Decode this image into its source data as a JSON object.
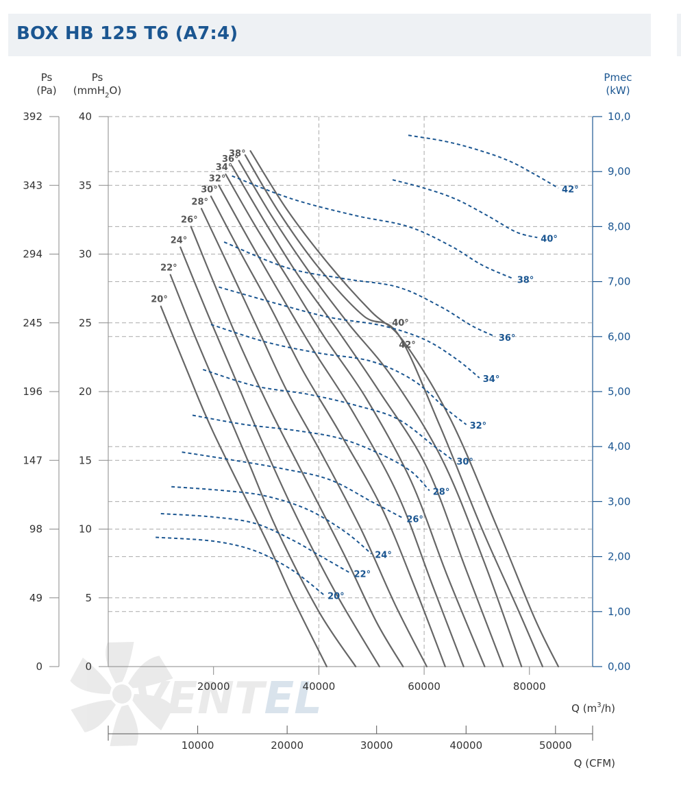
{
  "title": "BOX HB 125 T6 (A7:4)",
  "watermark": {
    "text_main": "VENT",
    "text_accent": "EL"
  },
  "colors": {
    "title": "#1b5691",
    "pressure_curves": "#666666",
    "power_curves": "#1b5691",
    "grid": "#a9a9a9",
    "title_bg": "#eef1f4"
  },
  "chart_data": {
    "type": "line",
    "title": "BOX HB 125 T6 (A7:4)",
    "x_axis": {
      "label_main": "Q (m",
      "label_sup": "3",
      "label_end": "/h)",
      "range": [
        0,
        92000
      ],
      "ticks": [
        20000,
        40000,
        60000,
        80000
      ],
      "tick_labels": [
        "20000",
        "40000",
        "60000",
        "80000"
      ]
    },
    "x2_axis": {
      "label": "Q (CFM)",
      "ticks": [
        10000,
        20000,
        30000,
        40000,
        50000
      ],
      "tick_labels": [
        "10000",
        "20000",
        "30000",
        "40000",
        "50000"
      ]
    },
    "y_left_pa": {
      "label": [
        "Ps",
        "(Pa)"
      ],
      "ticks": [
        0,
        49,
        98,
        147,
        196,
        245,
        294,
        343,
        392
      ],
      "tick_labels": [
        "0",
        "49",
        "98",
        "147",
        "196",
        "245",
        "294",
        "343",
        "392"
      ]
    },
    "y_left_mm": {
      "label_top": "Ps",
      "label_main": "(mmH",
      "label_sub": "2",
      "label_end": "O)",
      "range": [
        0,
        40
      ],
      "ticks": [
        0,
        5,
        10,
        15,
        20,
        25,
        30,
        35,
        40
      ],
      "tick_labels": [
        "0",
        "5",
        "10",
        "15",
        "20",
        "25",
        "30",
        "35",
        "40"
      ]
    },
    "y_right_kw": {
      "label": [
        "Pmec",
        "(kW)"
      ],
      "range": [
        0,
        10
      ],
      "ticks": [
        0,
        1,
        2,
        3,
        4,
        5,
        6,
        7,
        8,
        9,
        10
      ],
      "tick_labels": [
        "0,00",
        "1,00",
        "2,00",
        "3,00",
        "4,00",
        "5,00",
        "6,00",
        "7,00",
        "8,00",
        "9,00",
        "10,0"
      ]
    },
    "grid": {
      "horizontal_mm": [
        5,
        10,
        15,
        20,
        25,
        30,
        35,
        40
      ],
      "horizontal_kw": [
        1,
        2,
        3,
        4,
        6,
        7,
        8,
        9
      ],
      "vertical_q": [
        40000,
        60000
      ]
    },
    "series_pressure": [
      {
        "name": "20°",
        "points": [
          [
            10000,
            26.2
          ],
          [
            15000,
            21.5
          ],
          [
            20000,
            17.0
          ],
          [
            30000,
            9.2
          ],
          [
            35000,
            5.0
          ],
          [
            41500,
            0
          ]
        ]
      },
      {
        "name": "22°",
        "points": [
          [
            11800,
            28.5
          ],
          [
            16500,
            24.0
          ],
          [
            21500,
            19.5
          ],
          [
            26500,
            15.0
          ],
          [
            32000,
            10.0
          ],
          [
            40000,
            4.0
          ],
          [
            47000,
            0
          ]
        ]
      },
      {
        "name": "24°",
        "points": [
          [
            13700,
            30.5
          ],
          [
            18500,
            26.0
          ],
          [
            23500,
            21.5
          ],
          [
            28500,
            17.0
          ],
          [
            35000,
            11.5
          ],
          [
            43000,
            5.5
          ],
          [
            51500,
            0
          ]
        ]
      },
      {
        "name": "26°",
        "points": [
          [
            15700,
            32.0
          ],
          [
            20500,
            27.5
          ],
          [
            25500,
            23.0
          ],
          [
            31000,
            18.5
          ],
          [
            37000,
            14.0
          ],
          [
            45000,
            8.0
          ],
          [
            51000,
            3.2
          ],
          [
            56000,
            0
          ]
        ]
      },
      {
        "name": "28°",
        "points": [
          [
            17700,
            33.3
          ],
          [
            23000,
            29.0
          ],
          [
            28500,
            24.5
          ],
          [
            34000,
            20.0
          ],
          [
            40500,
            15.5
          ],
          [
            48000,
            10.0
          ],
          [
            54500,
            4.5
          ],
          [
            60500,
            0
          ]
        ]
      },
      {
        "name": "30°",
        "points": [
          [
            19500,
            34.2
          ],
          [
            25000,
            30.2
          ],
          [
            31000,
            26.0
          ],
          [
            37000,
            21.5
          ],
          [
            44000,
            17.0
          ],
          [
            52000,
            11.5
          ],
          [
            58500,
            5.5
          ],
          [
            64000,
            0
          ]
        ]
      },
      {
        "name": "32°",
        "points": [
          [
            21000,
            35.0
          ],
          [
            26500,
            31.2
          ],
          [
            32500,
            27.2
          ],
          [
            39000,
            23.0
          ],
          [
            46500,
            18.5
          ],
          [
            55000,
            12.5
          ],
          [
            61500,
            6.0
          ],
          [
            67500,
            0
          ]
        ]
      },
      {
        "name": "34°",
        "points": [
          [
            22300,
            35.8
          ],
          [
            28000,
            32.0
          ],
          [
            34500,
            28.0
          ],
          [
            41000,
            24.0
          ],
          [
            49000,
            19.5
          ],
          [
            57500,
            13.5
          ],
          [
            64500,
            6.5
          ],
          [
            71500,
            0
          ]
        ]
      },
      {
        "name": "36°",
        "points": [
          [
            23500,
            36.4
          ],
          [
            29500,
            32.5
          ],
          [
            36000,
            28.5
          ],
          [
            43500,
            24.5
          ],
          [
            51500,
            20.0
          ],
          [
            60500,
            14.5
          ],
          [
            68000,
            7.0
          ],
          [
            75000,
            0
          ]
        ]
      },
      {
        "name": "38°",
        "points": [
          [
            24800,
            36.8
          ],
          [
            31000,
            32.8
          ],
          [
            38000,
            28.8
          ],
          [
            45500,
            25.0
          ],
          [
            54000,
            21.0
          ],
          [
            63500,
            15.0
          ],
          [
            71500,
            7.5
          ],
          [
            78500,
            0
          ]
        ]
      },
      {
        "name": "40°",
        "points": [
          [
            26000,
            37.2
          ],
          [
            32500,
            33.0
          ],
          [
            40000,
            29.0
          ],
          [
            48500,
            25.5
          ],
          [
            55000,
            24.2
          ],
          [
            63000,
            17.5
          ],
          [
            71000,
            10.0
          ],
          [
            78000,
            4.0
          ],
          [
            82500,
            0
          ]
        ]
      },
      {
        "name": "42°",
        "points": [
          [
            27000,
            37.5
          ],
          [
            34000,
            33.2
          ],
          [
            42000,
            29.2
          ],
          [
            50000,
            25.8
          ],
          [
            56000,
            23.7
          ],
          [
            65000,
            18.0
          ],
          [
            74000,
            10.0
          ],
          [
            81000,
            3.5
          ],
          [
            85500,
            0
          ]
        ]
      }
    ],
    "series_power": [
      {
        "name": "20°",
        "points": [
          [
            9000,
            2.35
          ],
          [
            20000,
            2.28
          ],
          [
            28000,
            2.1
          ],
          [
            35000,
            1.75
          ],
          [
            41000,
            1.3
          ]
        ]
      },
      {
        "name": "22°",
        "points": [
          [
            10000,
            2.78
          ],
          [
            20000,
            2.72
          ],
          [
            28000,
            2.6
          ],
          [
            35000,
            2.3
          ],
          [
            40500,
            2.0
          ],
          [
            46000,
            1.7
          ]
        ]
      },
      {
        "name": "24°",
        "points": [
          [
            12000,
            3.27
          ],
          [
            22000,
            3.2
          ],
          [
            30000,
            3.1
          ],
          [
            38000,
            2.85
          ],
          [
            45000,
            2.45
          ],
          [
            50000,
            2.05
          ]
        ]
      },
      {
        "name": "26°",
        "points": [
          [
            14000,
            3.9
          ],
          [
            24000,
            3.75
          ],
          [
            33000,
            3.6
          ],
          [
            42000,
            3.4
          ],
          [
            50000,
            3.0
          ],
          [
            56000,
            2.7
          ]
        ]
      },
      {
        "name": "28°",
        "points": [
          [
            16000,
            4.57
          ],
          [
            26000,
            4.4
          ],
          [
            35000,
            4.3
          ],
          [
            44000,
            4.15
          ],
          [
            52000,
            3.85
          ],
          [
            57500,
            3.55
          ],
          [
            61000,
            3.2
          ]
        ]
      },
      {
        "name": "30°",
        "points": [
          [
            18000,
            5.4
          ],
          [
            28000,
            5.1
          ],
          [
            38000,
            4.95
          ],
          [
            47000,
            4.75
          ],
          [
            55000,
            4.5
          ],
          [
            62000,
            4.0
          ],
          [
            65500,
            3.75
          ]
        ]
      },
      {
        "name": "32°",
        "points": [
          [
            19500,
            6.22
          ],
          [
            30000,
            5.9
          ],
          [
            40000,
            5.7
          ],
          [
            50000,
            5.55
          ],
          [
            58000,
            5.2
          ],
          [
            64000,
            4.7
          ],
          [
            68000,
            4.4
          ]
        ]
      },
      {
        "name": "34°",
        "points": [
          [
            21000,
            6.9
          ],
          [
            32000,
            6.6
          ],
          [
            42000,
            6.35
          ],
          [
            52000,
            6.2
          ],
          [
            60000,
            5.95
          ],
          [
            66000,
            5.6
          ],
          [
            70500,
            5.25
          ]
        ]
      },
      {
        "name": "36°",
        "points": [
          [
            22000,
            7.72
          ],
          [
            34000,
            7.25
          ],
          [
            45000,
            7.05
          ],
          [
            55000,
            6.9
          ],
          [
            63000,
            6.55
          ],
          [
            69000,
            6.2
          ],
          [
            73500,
            6.0
          ]
        ]
      },
      {
        "name": "38°",
        "points": [
          [
            23500,
            8.92
          ],
          [
            35000,
            8.5
          ],
          [
            47000,
            8.2
          ],
          [
            57000,
            8.0
          ],
          [
            65000,
            7.65
          ],
          [
            71000,
            7.3
          ],
          [
            77000,
            7.05
          ]
        ]
      },
      {
        "name": "40°",
        "points": [
          [
            54000,
            8.85
          ],
          [
            60000,
            8.7
          ],
          [
            66000,
            8.5
          ],
          [
            72000,
            8.2
          ],
          [
            77500,
            7.9
          ],
          [
            81500,
            7.8
          ]
        ]
      },
      {
        "name": "42°",
        "points": [
          [
            57000,
            9.66
          ],
          [
            64000,
            9.55
          ],
          [
            70000,
            9.4
          ],
          [
            76000,
            9.2
          ],
          [
            81000,
            8.95
          ],
          [
            85500,
            8.7
          ]
        ]
      }
    ]
  }
}
